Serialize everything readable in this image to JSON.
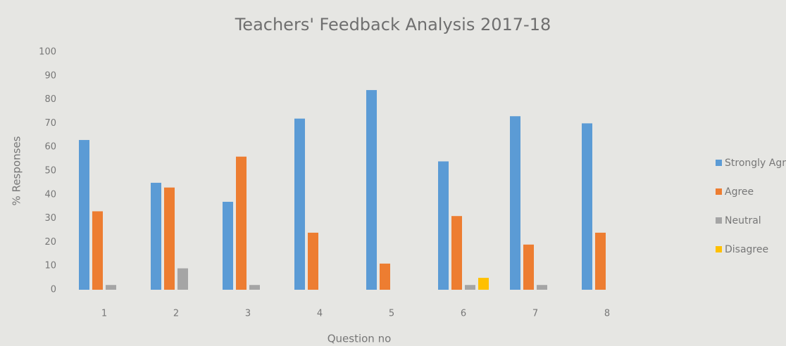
{
  "chart_data": {
    "type": "bar",
    "title": "Teachers' Feedback Analysis 2017-18",
    "x_label": "Question no",
    "y_label": "% Responses",
    "categories": [
      "1",
      "2",
      "3",
      "4",
      "5",
      "6",
      "7",
      "8"
    ],
    "series": [
      {
        "name": "Strongly Agree",
        "color": "#5b9bd5",
        "values": [
          63,
          45,
          37,
          72,
          84,
          54,
          73,
          70
        ]
      },
      {
        "name": "Agree",
        "color": "#ed7d31",
        "values": [
          33,
          43,
          56,
          24,
          11,
          31,
          19,
          24
        ]
      },
      {
        "name": "Neutral",
        "color": "#a5a5a5",
        "values": [
          2,
          9,
          2,
          0,
          0,
          2,
          2,
          0
        ]
      },
      {
        "name": "Disagree",
        "color": "#ffc000",
        "values": [
          0,
          0,
          0,
          0,
          0,
          5,
          0,
          0
        ]
      }
    ],
    "ylim": [
      0,
      100
    ],
    "yticks": [
      0,
      10,
      20,
      30,
      40,
      50,
      60,
      70,
      80,
      90,
      100
    ],
    "grid": false,
    "legend": "right"
  }
}
